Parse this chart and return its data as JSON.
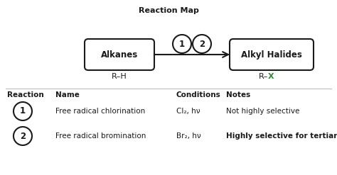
{
  "title": "Reaction Map",
  "box1_label": "Alkanes",
  "box1_sublabel": "R–H",
  "box2_label": "Alkyl Halides",
  "box2_sublabel_black": "R–",
  "box2_sublabel_green": "X",
  "circle1_label": "1",
  "circle2_label": "2",
  "table_headers": [
    "Reaction",
    "Name",
    "Conditions",
    "Notes"
  ],
  "row1": {
    "num": "1",
    "name": "Free radical chlorination",
    "conditions": "Cl₂, hν",
    "notes": "Not highly selective"
  },
  "row2": {
    "num": "2",
    "name": "Free radical bromination",
    "conditions": "Br₂, hν",
    "notes": "Highly selective for tertiary C–H"
  },
  "bg_color": "#ffffff",
  "text_color": "#1a1a1a",
  "green_color": "#2e8b2e",
  "box_edge_color": "#1a1a1a",
  "arrow_color": "#1a1a1a",
  "divider_color": "#bbbbbb"
}
